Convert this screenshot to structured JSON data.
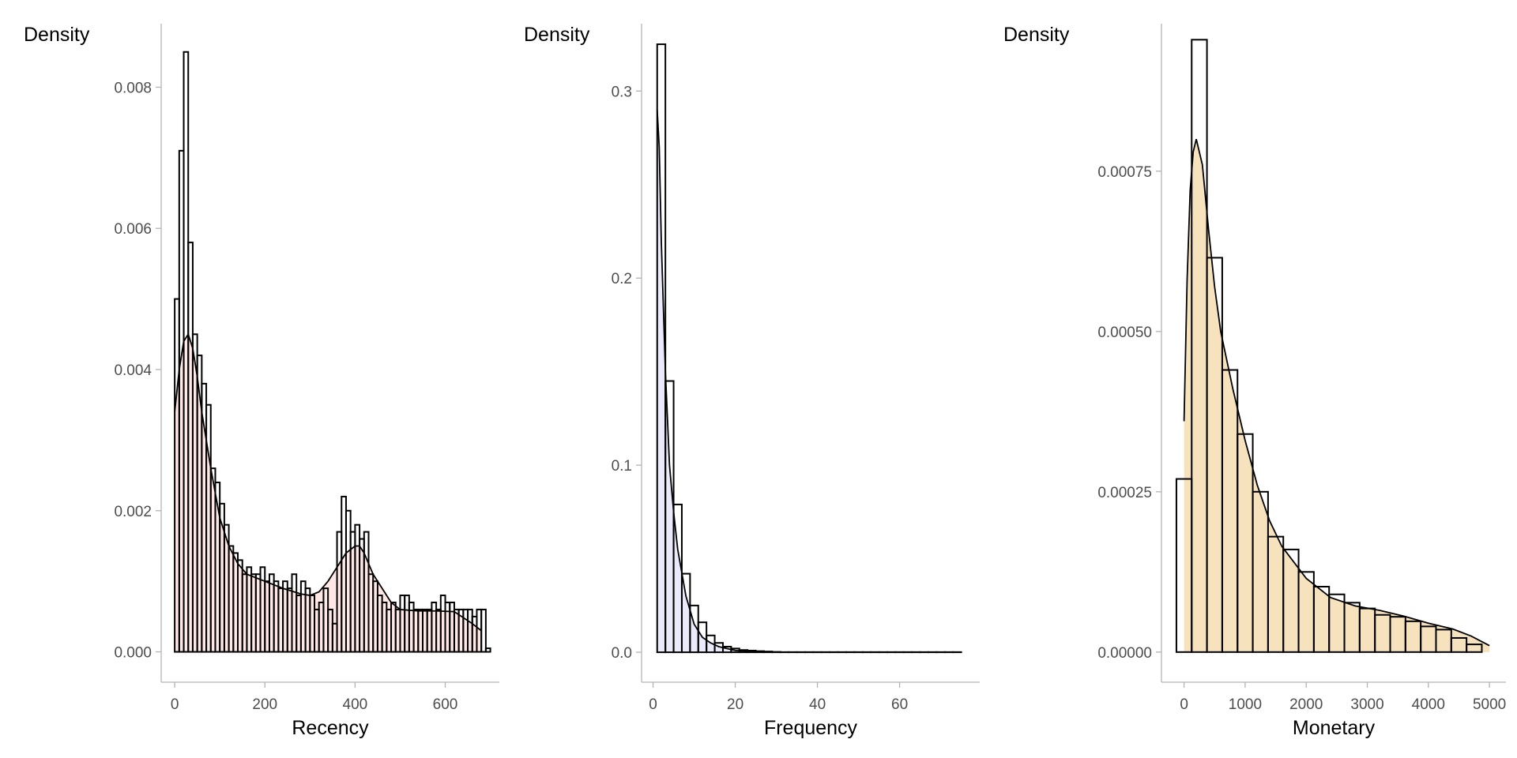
{
  "chart_data": [
    {
      "type": "histogram",
      "xlabel": "Recency",
      "ylabel": "Density",
      "xlim": [
        -30,
        720
      ],
      "ylim": [
        -0.00043,
        0.0089
      ],
      "xticks": [
        0,
        200,
        400,
        600
      ],
      "yticks": [
        0.0,
        0.002,
        0.004,
        0.006,
        0.008
      ],
      "ytick_labels": [
        "0.000",
        "0.002",
        "0.004",
        "0.006",
        "0.008"
      ],
      "grid": false,
      "fill_color": "#ffe4e1",
      "bin_width": 10,
      "bin_start": 0,
      "bar_values": [
        0.005,
        0.0071,
        0.0085,
        0.0058,
        0.0045,
        0.0042,
        0.0038,
        0.0035,
        0.0026,
        0.0024,
        0.0021,
        0.0018,
        0.0015,
        0.0014,
        0.0013,
        0.0011,
        0.0012,
        0.0011,
        0.0011,
        0.0012,
        0.001,
        0.0011,
        0.001,
        0.0009,
        0.001,
        0.0009,
        0.0011,
        0.0008,
        0.001,
        0.0009,
        0.0008,
        0.0006,
        0.0007,
        0.0009,
        0.0006,
        0.0004,
        0.0017,
        0.0022,
        0.002,
        0.0017,
        0.0018,
        0.0016,
        0.0017,
        0.0011,
        0.001,
        0.0008,
        0.0007,
        0.0006,
        0.0007,
        0.0006,
        0.0008,
        0.0008,
        0.0007,
        0.0006,
        0.0006,
        0.0006,
        0.0006,
        0.0007,
        0.0006,
        0.0008,
        0.0007,
        0.0007,
        0.0006,
        0.0006,
        0.0006,
        0.0006,
        0.0005,
        0.0006,
        0.0006,
        5e-05
      ],
      "density_curve": {
        "x": [
          0,
          10,
          20,
          30,
          40,
          50,
          60,
          80,
          100,
          120,
          140,
          160,
          200,
          240,
          280,
          300,
          320,
          340,
          360,
          380,
          400,
          410,
          420,
          440,
          460,
          480,
          500,
          540,
          580,
          620,
          660,
          680
        ],
        "y": [
          0.0034,
          0.004,
          0.0044,
          0.0045,
          0.0043,
          0.0039,
          0.0034,
          0.0026,
          0.0019,
          0.0015,
          0.00125,
          0.0011,
          0.001,
          0.0009,
          0.00082,
          0.0008,
          0.00085,
          0.001,
          0.0012,
          0.0014,
          0.0015,
          0.0015,
          0.0014,
          0.0011,
          0.0009,
          0.0007,
          0.0006,
          0.00058,
          0.00058,
          0.00057,
          0.0004,
          0.0003
        ]
      }
    },
    {
      "type": "histogram",
      "xlabel": "Frequency",
      "ylabel": "Density",
      "xlim": [
        -2.8,
        79.5
      ],
      "ylim": [
        -0.016,
        0.336
      ],
      "xticks": [
        0,
        20,
        40,
        60
      ],
      "yticks": [
        0.0,
        0.1,
        0.2,
        0.3
      ],
      "ytick_labels": [
        "0.0",
        "0.1",
        "0.2",
        "0.3"
      ],
      "grid": false,
      "fill_color": "#e6e6fa",
      "bin_width": 2,
      "bin_start": 1,
      "bar_values": [
        0.325,
        0.145,
        0.079,
        0.042,
        0.025,
        0.016,
        0.009,
        0.005,
        0.003,
        0.002,
        0.0012,
        0.0009,
        0.0006,
        0.0004,
        0.0002,
        0.0001,
        0.0001,
        0.0001,
        0.0001,
        0.0001,
        0.0001,
        0.0001,
        0.0001,
        0.0001,
        0.0001,
        0.0001,
        0.0001,
        0.0001,
        0.0001,
        0.0001,
        0.0001,
        0.0001,
        0.0001,
        0.0001,
        0.0001,
        0.0001,
        0.0001
      ],
      "density_curve": {
        "x": [
          1,
          1.5,
          2,
          3,
          4,
          5,
          6,
          8,
          10,
          12,
          14,
          16,
          20,
          25,
          30
        ],
        "y": [
          0.29,
          0.27,
          0.22,
          0.15,
          0.1,
          0.075,
          0.055,
          0.03,
          0.015,
          0.008,
          0.005,
          0.003,
          0.001,
          0.0003,
          0.0001
        ]
      }
    },
    {
      "type": "histogram",
      "xlabel": "Monetary",
      "ylabel": "Density",
      "xlim": [
        -370,
        5270
      ],
      "ylim": [
        -4.7e-05,
        0.00098
      ],
      "xticks": [
        0,
        1000,
        2000,
        3000,
        4000,
        5000
      ],
      "yticks": [
        0.0,
        0.00025,
        0.0005,
        0.00075
      ],
      "ytick_labels": [
        "0.00000",
        "0.00025",
        "0.00050",
        "0.00075"
      ],
      "grid": false,
      "fill_color": "#f5deb3",
      "bin_width": 250,
      "bin_start": -125,
      "bar_values": [
        0.00027,
        0.000955,
        0.000615,
        0.00044,
        0.00034,
        0.00025,
        0.00018,
        0.00016,
        0.000125,
        0.000102,
        9e-05,
        7.7e-05,
        6.8e-05,
        5.8e-05,
        5.5e-05,
        4.8e-05,
        4e-05,
        3.5e-05,
        2.2e-05,
        1.2e-05
      ],
      "density_curve": {
        "x": [
          0,
          50,
          100,
          150,
          200,
          300,
          400,
          500,
          600,
          800,
          1000,
          1200,
          1400,
          1600,
          2000,
          2400,
          2800,
          3200,
          3600,
          4000,
          4400,
          4700,
          5000
        ],
        "y": [
          0.00036,
          0.00058,
          0.00072,
          0.00078,
          0.0008,
          0.00076,
          0.00066,
          0.00057,
          0.0005,
          0.00041,
          0.00033,
          0.00026,
          0.000205,
          0.000165,
          0.000115,
          8.5e-05,
          7.2e-05,
          6.5e-05,
          5.6e-05,
          4.5e-05,
          3.6e-05,
          2.5e-05,
          1e-05
        ]
      }
    }
  ]
}
